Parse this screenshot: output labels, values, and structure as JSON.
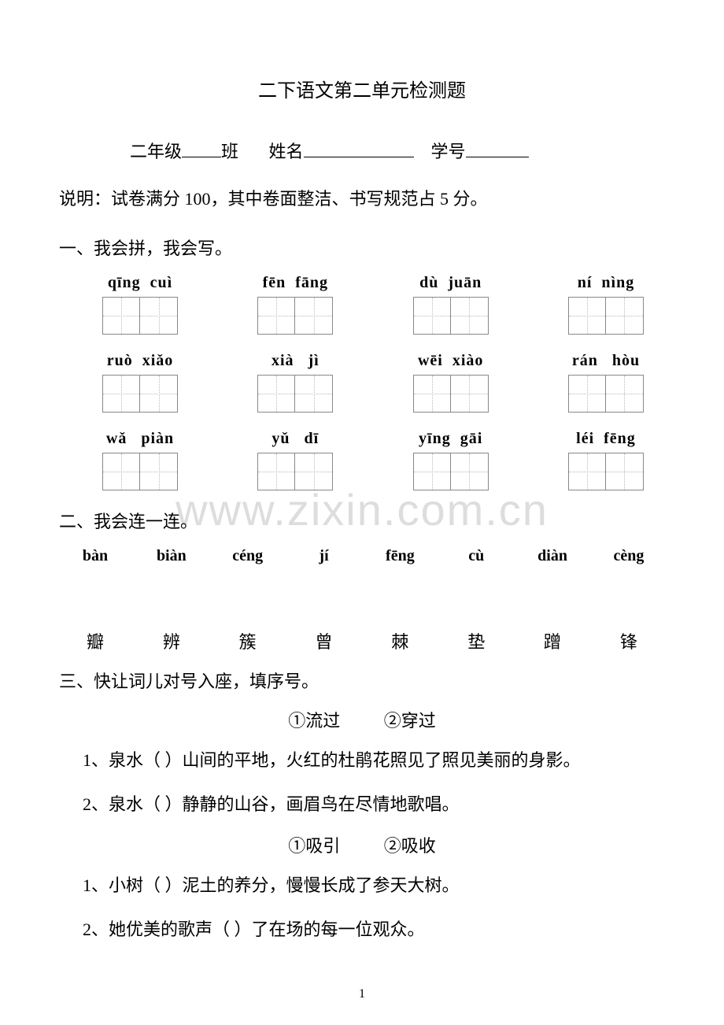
{
  "title": "二下语文第二单元检测题",
  "header": {
    "grade": "二年级",
    "ban": "班",
    "name_label": "姓名",
    "id_label": "学号"
  },
  "instruction": "说明：试卷满分 100，其中卷面整洁、书写规范占 5 分。",
  "section1": {
    "heading": "一、我会拼，我会写。",
    "rows": [
      [
        "qīng  cuì",
        "fēn  fāng",
        "dù  juān",
        "ní  nìng"
      ],
      [
        "ruò  xiǎo",
        "xià   jì",
        "wēi  xiào",
        "rán   hòu"
      ],
      [
        "wǎ   piàn",
        "yǔ   dī",
        "yīng  gāi",
        "léi  fēng"
      ]
    ]
  },
  "section2": {
    "heading": "二、我会连一连。",
    "pinyin": [
      "bàn",
      "biàn",
      "céng",
      "jí",
      "fēng",
      "cù",
      "diàn",
      "cèng"
    ],
    "hanzi": [
      "瓣",
      "辨",
      "簇",
      "曾",
      "棘",
      "垫",
      "蹭",
      "锋"
    ]
  },
  "section3": {
    "heading": "三、快让词儿对号入座，填序号。",
    "groups": [
      {
        "options": [
          "①流过",
          "②穿过"
        ],
        "questions": [
          "1、泉水（        ）山间的平地，火红的杜鹃花照见了照见美丽的身影。",
          "2、泉水（        ）静静的山谷，画眉鸟在尽情地歌唱。"
        ]
      },
      {
        "options": [
          "①吸引",
          "②吸收"
        ],
        "questions": [
          "1、小树（        ）泥土的养分，慢慢长成了参天大树。",
          "2、她优美的歌声（         ）了在场的每一位观众。"
        ]
      }
    ]
  },
  "watermark": "www.zixin.com.cn",
  "page_number": "1",
  "colors": {
    "text": "#000000",
    "background": "#ffffff",
    "box_border": "#888888",
    "box_guide": "#bbbbbb",
    "watermark": "#dddddd"
  }
}
